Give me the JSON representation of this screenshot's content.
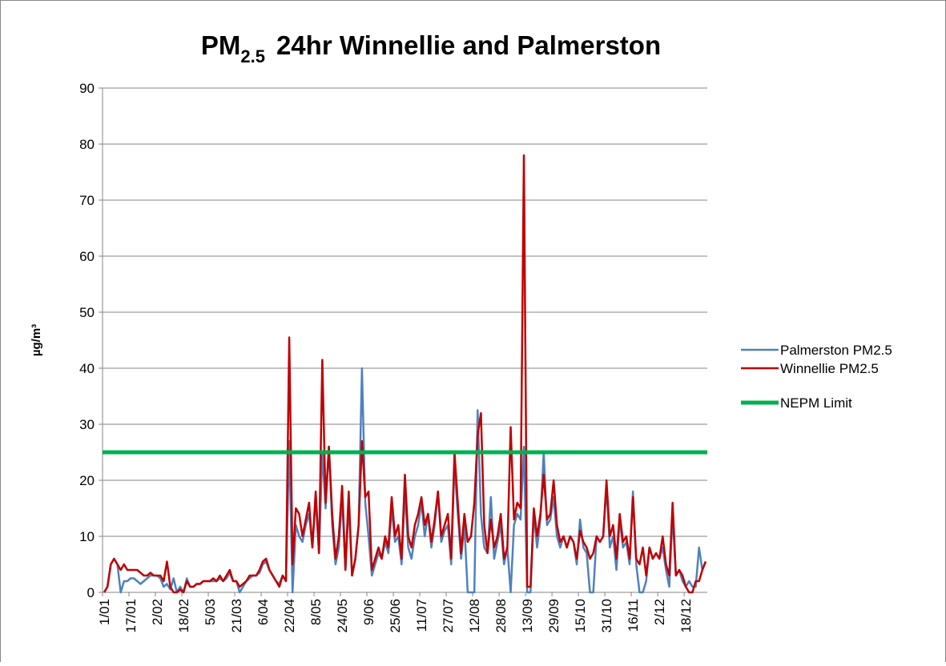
{
  "chart_data": {
    "type": "line",
    "title": {
      "main": "PM",
      "sub": "2.5",
      "rest": "24hr Winnellie and Palmerston"
    },
    "y_label": "µg/m³",
    "categories": [
      "1/01",
      null,
      null,
      null,
      null,
      null,
      null,
      null,
      "17/01",
      null,
      null,
      null,
      null,
      null,
      null,
      null,
      "2/02",
      null,
      null,
      null,
      null,
      null,
      null,
      null,
      "18/02",
      null,
      null,
      null,
      null,
      null,
      null,
      null,
      "5/03",
      null,
      null,
      null,
      null,
      null,
      null,
      null,
      "21/03",
      null,
      null,
      null,
      null,
      null,
      null,
      null,
      "6/04",
      null,
      null,
      null,
      null,
      null,
      null,
      null,
      "22/04",
      null,
      null,
      null,
      null,
      null,
      null,
      null,
      "8/05",
      null,
      null,
      null,
      null,
      null,
      null,
      null,
      "24/05",
      null,
      null,
      null,
      null,
      null,
      null,
      null,
      "9/06",
      null,
      null,
      null,
      null,
      null,
      null,
      null,
      "25/06",
      null,
      null,
      null,
      null,
      null,
      null,
      null,
      "11/07",
      null,
      null,
      null,
      null,
      null,
      null,
      null,
      "27/07",
      null,
      null,
      null,
      null,
      null,
      null,
      null,
      "12/08",
      null,
      null,
      null,
      null,
      null,
      null,
      null,
      "28/08",
      null,
      null,
      null,
      null,
      null,
      null,
      null,
      "13/09",
      null,
      null,
      null,
      null,
      null,
      null,
      null,
      "29/09",
      null,
      null,
      null,
      null,
      null,
      null,
      null,
      "15/10",
      null,
      null,
      null,
      null,
      null,
      null,
      null,
      "31/10",
      null,
      null,
      null,
      null,
      null,
      null,
      null,
      "16/11",
      null,
      null,
      null,
      null,
      null,
      null,
      null,
      "2/12",
      null,
      null,
      null,
      null,
      null,
      null,
      null,
      "18/12",
      null,
      null,
      null,
      null,
      null,
      null
    ],
    "series": [
      {
        "name": "Palmerston PM2.5",
        "color": "#4f81bd",
        "values": [
          0,
          1,
          5,
          6,
          5,
          0,
          2,
          2,
          2.5,
          2.5,
          2,
          1.5,
          2,
          2.5,
          3,
          3,
          3,
          2.5,
          1,
          1.5,
          0.5,
          2.5,
          0,
          1,
          0,
          2.5,
          1,
          1,
          1.5,
          1.5,
          2,
          2,
          2,
          2,
          2,
          2.5,
          2,
          2.5,
          3.5,
          2,
          2,
          0,
          1,
          2,
          2.5,
          3,
          3,
          3.5,
          5,
          5.5,
          4,
          3,
          2,
          1.5,
          3,
          2,
          27,
          0,
          12,
          10,
          9,
          12,
          14,
          8,
          17,
          7,
          25,
          15,
          26,
          12,
          5,
          8,
          17,
          4,
          16,
          3,
          6,
          12,
          40,
          16,
          10,
          3,
          5,
          7,
          6,
          9,
          7,
          15,
          9,
          10,
          5,
          18,
          8,
          6,
          10,
          12,
          16,
          10,
          14,
          8,
          12,
          18,
          9,
          11,
          12,
          5,
          23,
          14,
          6,
          12,
          0,
          0,
          0,
          32.5,
          14,
          8,
          7,
          17,
          6,
          9,
          12,
          5,
          8,
          0,
          12,
          14,
          13,
          26,
          0,
          0,
          14,
          8,
          13,
          25,
          12,
          13,
          17,
          10,
          8,
          10,
          8,
          10,
          9,
          5,
          13,
          8,
          7,
          0,
          0,
          10,
          9,
          10,
          19,
          8,
          10,
          4,
          13,
          8,
          9,
          5,
          18,
          5,
          0,
          0,
          2,
          8,
          6,
          7,
          6,
          8,
          4,
          1,
          14,
          3,
          4,
          2,
          1,
          2,
          1,
          1,
          8,
          4,
          5.5
        ]
      },
      {
        "name": "Winnellie PM2.5",
        "color": "#c00000",
        "values": [
          0,
          1,
          5,
          6,
          5,
          4,
          5,
          4,
          4,
          4,
          4,
          3.5,
          3,
          3,
          3.5,
          3,
          3,
          3,
          2,
          5.5,
          1,
          0,
          0,
          0.5,
          0,
          2,
          1,
          1,
          1.5,
          1.5,
          2,
          2,
          2,
          2.5,
          2,
          3,
          2,
          3,
          4,
          2,
          2,
          1,
          1.5,
          2,
          3,
          3,
          3,
          4,
          5.5,
          6,
          4,
          3,
          2,
          1,
          3,
          2,
          45.5,
          5,
          15,
          14,
          10,
          13,
          16,
          8,
          18,
          7,
          41.5,
          16,
          26,
          14,
          6,
          10,
          19,
          4,
          18,
          3,
          6,
          12,
          27,
          17,
          18,
          4,
          6,
          8,
          6,
          10,
          8,
          17,
          10,
          12,
          6,
          21,
          10,
          8,
          12,
          14,
          17,
          12,
          14,
          9,
          13,
          18,
          10,
          12,
          14,
          6,
          25,
          16,
          7,
          14,
          9,
          10,
          16,
          28,
          32,
          12,
          7,
          13,
          8,
          10,
          14,
          6,
          8,
          29.5,
          13,
          16,
          15,
          78,
          1,
          1,
          15,
          10,
          14,
          21,
          13,
          14,
          20,
          12,
          9,
          10,
          8,
          10,
          9,
          6,
          11,
          9,
          8,
          6,
          7,
          10,
          9,
          10,
          20,
          10,
          12,
          6,
          14,
          9,
          10,
          6,
          17,
          6,
          5,
          8,
          3,
          8,
          6,
          7,
          6,
          10,
          5,
          3,
          16,
          3,
          4,
          3,
          1,
          0,
          0,
          2,
          2,
          4,
          5.5
        ]
      },
      {
        "name": "NEPM Limit",
        "color": "#00b050",
        "value": 25
      }
    ],
    "ylim": [
      0,
      90
    ],
    "yticks": [
      0,
      10,
      20,
      30,
      40,
      50,
      60,
      70,
      80,
      90
    ],
    "grid": true
  }
}
